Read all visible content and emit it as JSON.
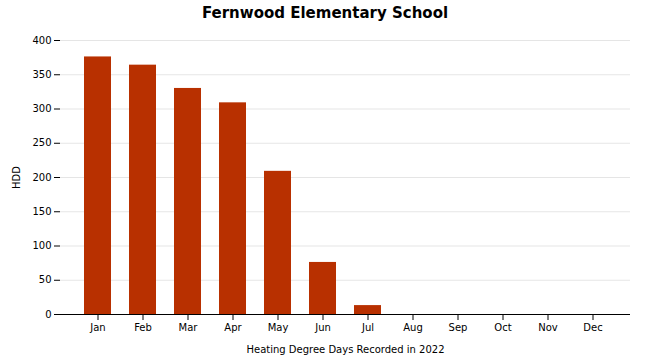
{
  "chart_data": {
    "type": "bar",
    "title": "Fernwood Elementary School",
    "categories": [
      "Jan",
      "Feb",
      "Mar",
      "Apr",
      "May",
      "Jun",
      "Jul",
      "Aug",
      "Sep",
      "Oct",
      "Nov",
      "Dec"
    ],
    "values": [
      376,
      364,
      330,
      309,
      209,
      76,
      13,
      0,
      0,
      0,
      0,
      0
    ],
    "color": "#b83000",
    "xlabel": "Heating Degree Days Recorded in 2022",
    "ylabel": "HDD",
    "ylim": [
      0,
      400
    ],
    "yticks": [
      0,
      50,
      100,
      150,
      200,
      250,
      300,
      350,
      400
    ],
    "grid": true
  }
}
